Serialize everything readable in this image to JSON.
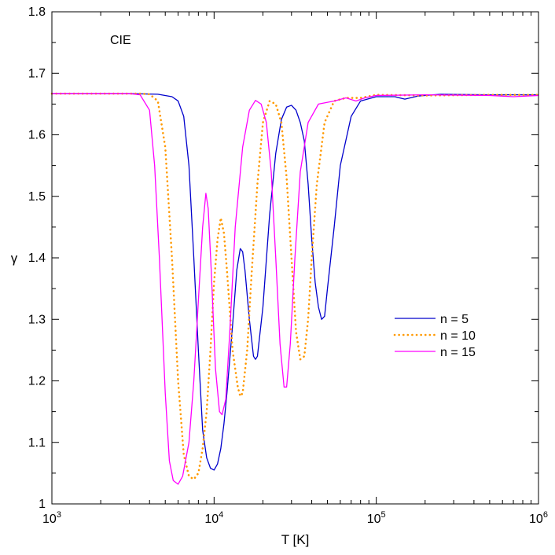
{
  "chart_data": {
    "type": "line",
    "title": "",
    "annotation": "CIE",
    "xlabel": "T [K]",
    "ylabel": "γ",
    "xscale": "log",
    "xlim": [
      1000,
      1000000
    ],
    "ylim": [
      1.0,
      1.8
    ],
    "grid": false,
    "legend_position": "right-middle",
    "x_ticks": [
      {
        "value": 1000,
        "base": "10",
        "exp": "3"
      },
      {
        "value": 10000,
        "base": "10",
        "exp": "4"
      },
      {
        "value": 100000,
        "base": "10",
        "exp": "5"
      },
      {
        "value": 1000000,
        "base": "10",
        "exp": "6"
      }
    ],
    "y_ticks": [
      "1",
      "1.1",
      "1.2",
      "1.3",
      "1.4",
      "1.5",
      "1.6",
      "1.7",
      "1.8"
    ],
    "series": [
      {
        "name": "n = 5",
        "color": "#0000cc",
        "style": "solid",
        "points": [
          [
            1000,
            1.667
          ],
          [
            3000,
            1.667
          ],
          [
            4500,
            1.666
          ],
          [
            5500,
            1.662
          ],
          [
            6000,
            1.655
          ],
          [
            6500,
            1.63
          ],
          [
            7000,
            1.55
          ],
          [
            7500,
            1.4
          ],
          [
            8000,
            1.25
          ],
          [
            8500,
            1.12
          ],
          [
            9000,
            1.075
          ],
          [
            9500,
            1.058
          ],
          [
            10000,
            1.055
          ],
          [
            10500,
            1.065
          ],
          [
            11000,
            1.09
          ],
          [
            11500,
            1.13
          ],
          [
            12000,
            1.18
          ],
          [
            13000,
            1.29
          ],
          [
            13800,
            1.38
          ],
          [
            14500,
            1.415
          ],
          [
            15000,
            1.41
          ],
          [
            15500,
            1.38
          ],
          [
            16500,
            1.3
          ],
          [
            17500,
            1.24
          ],
          [
            18000,
            1.235
          ],
          [
            18500,
            1.24
          ],
          [
            20000,
            1.32
          ],
          [
            22000,
            1.47
          ],
          [
            24000,
            1.57
          ],
          [
            26000,
            1.625
          ],
          [
            28000,
            1.645
          ],
          [
            30000,
            1.648
          ],
          [
            32000,
            1.64
          ],
          [
            34000,
            1.62
          ],
          [
            36000,
            1.59
          ],
          [
            38000,
            1.52
          ],
          [
            40000,
            1.43
          ],
          [
            42000,
            1.36
          ],
          [
            44000,
            1.32
          ],
          [
            46000,
            1.3
          ],
          [
            48000,
            1.305
          ],
          [
            50000,
            1.35
          ],
          [
            55000,
            1.45
          ],
          [
            60000,
            1.55
          ],
          [
            70000,
            1.63
          ],
          [
            80000,
            1.655
          ],
          [
            100000,
            1.662
          ],
          [
            130000,
            1.662
          ],
          [
            150000,
            1.658
          ],
          [
            180000,
            1.663
          ],
          [
            250000,
            1.666
          ],
          [
            500000,
            1.665
          ],
          [
            1000000,
            1.665
          ]
        ]
      },
      {
        "name": "n = 10",
        "color": "#ff9900",
        "style": "dotted",
        "points": [
          [
            1000,
            1.667
          ],
          [
            3500,
            1.667
          ],
          [
            4000,
            1.666
          ],
          [
            4500,
            1.655
          ],
          [
            5000,
            1.58
          ],
          [
            5500,
            1.4
          ],
          [
            6000,
            1.2
          ],
          [
            6500,
            1.08
          ],
          [
            7000,
            1.045
          ],
          [
            7500,
            1.04
          ],
          [
            8000,
            1.05
          ],
          [
            8500,
            1.09
          ],
          [
            9000,
            1.15
          ],
          [
            9500,
            1.25
          ],
          [
            10000,
            1.36
          ],
          [
            10500,
            1.43
          ],
          [
            11000,
            1.465
          ],
          [
            11500,
            1.44
          ],
          [
            12000,
            1.38
          ],
          [
            13000,
            1.25
          ],
          [
            14000,
            1.19
          ],
          [
            14500,
            1.175
          ],
          [
            15000,
            1.18
          ],
          [
            16000,
            1.25
          ],
          [
            17000,
            1.37
          ],
          [
            18500,
            1.52
          ],
          [
            20000,
            1.62
          ],
          [
            22000,
            1.655
          ],
          [
            24000,
            1.65
          ],
          [
            26000,
            1.62
          ],
          [
            28000,
            1.53
          ],
          [
            30000,
            1.4
          ],
          [
            32000,
            1.28
          ],
          [
            34000,
            1.235
          ],
          [
            36000,
            1.24
          ],
          [
            38000,
            1.3
          ],
          [
            40000,
            1.4
          ],
          [
            43000,
            1.52
          ],
          [
            48000,
            1.62
          ],
          [
            55000,
            1.655
          ],
          [
            65000,
            1.66
          ],
          [
            80000,
            1.66
          ],
          [
            100000,
            1.665
          ],
          [
            200000,
            1.664
          ],
          [
            500000,
            1.665
          ],
          [
            1000000,
            1.665
          ]
        ]
      },
      {
        "name": "n = 15",
        "color": "#ff00ff",
        "style": "solid",
        "points": [
          [
            1000,
            1.667
          ],
          [
            3000,
            1.667
          ],
          [
            3500,
            1.665
          ],
          [
            4000,
            1.64
          ],
          [
            4300,
            1.55
          ],
          [
            4600,
            1.4
          ],
          [
            5000,
            1.18
          ],
          [
            5300,
            1.07
          ],
          [
            5600,
            1.038
          ],
          [
            6000,
            1.032
          ],
          [
            6400,
            1.045
          ],
          [
            7000,
            1.1
          ],
          [
            7500,
            1.2
          ],
          [
            8000,
            1.33
          ],
          [
            8500,
            1.45
          ],
          [
            8900,
            1.505
          ],
          [
            9200,
            1.48
          ],
          [
            9600,
            1.38
          ],
          [
            10200,
            1.22
          ],
          [
            10800,
            1.15
          ],
          [
            11200,
            1.145
          ],
          [
            11800,
            1.17
          ],
          [
            12500,
            1.28
          ],
          [
            13500,
            1.45
          ],
          [
            15000,
            1.58
          ],
          [
            16500,
            1.64
          ],
          [
            18000,
            1.656
          ],
          [
            19500,
            1.65
          ],
          [
            21000,
            1.62
          ],
          [
            22500,
            1.54
          ],
          [
            24000,
            1.4
          ],
          [
            25500,
            1.26
          ],
          [
            27000,
            1.19
          ],
          [
            28000,
            1.19
          ],
          [
            29500,
            1.26
          ],
          [
            31500,
            1.4
          ],
          [
            34000,
            1.54
          ],
          [
            38000,
            1.62
          ],
          [
            44000,
            1.65
          ],
          [
            55000,
            1.655
          ],
          [
            65000,
            1.66
          ],
          [
            75000,
            1.655
          ],
          [
            85000,
            1.66
          ],
          [
            100000,
            1.664
          ],
          [
            200000,
            1.665
          ],
          [
            500000,
            1.664
          ],
          [
            700000,
            1.662
          ],
          [
            1000000,
            1.664
          ]
        ]
      }
    ]
  }
}
